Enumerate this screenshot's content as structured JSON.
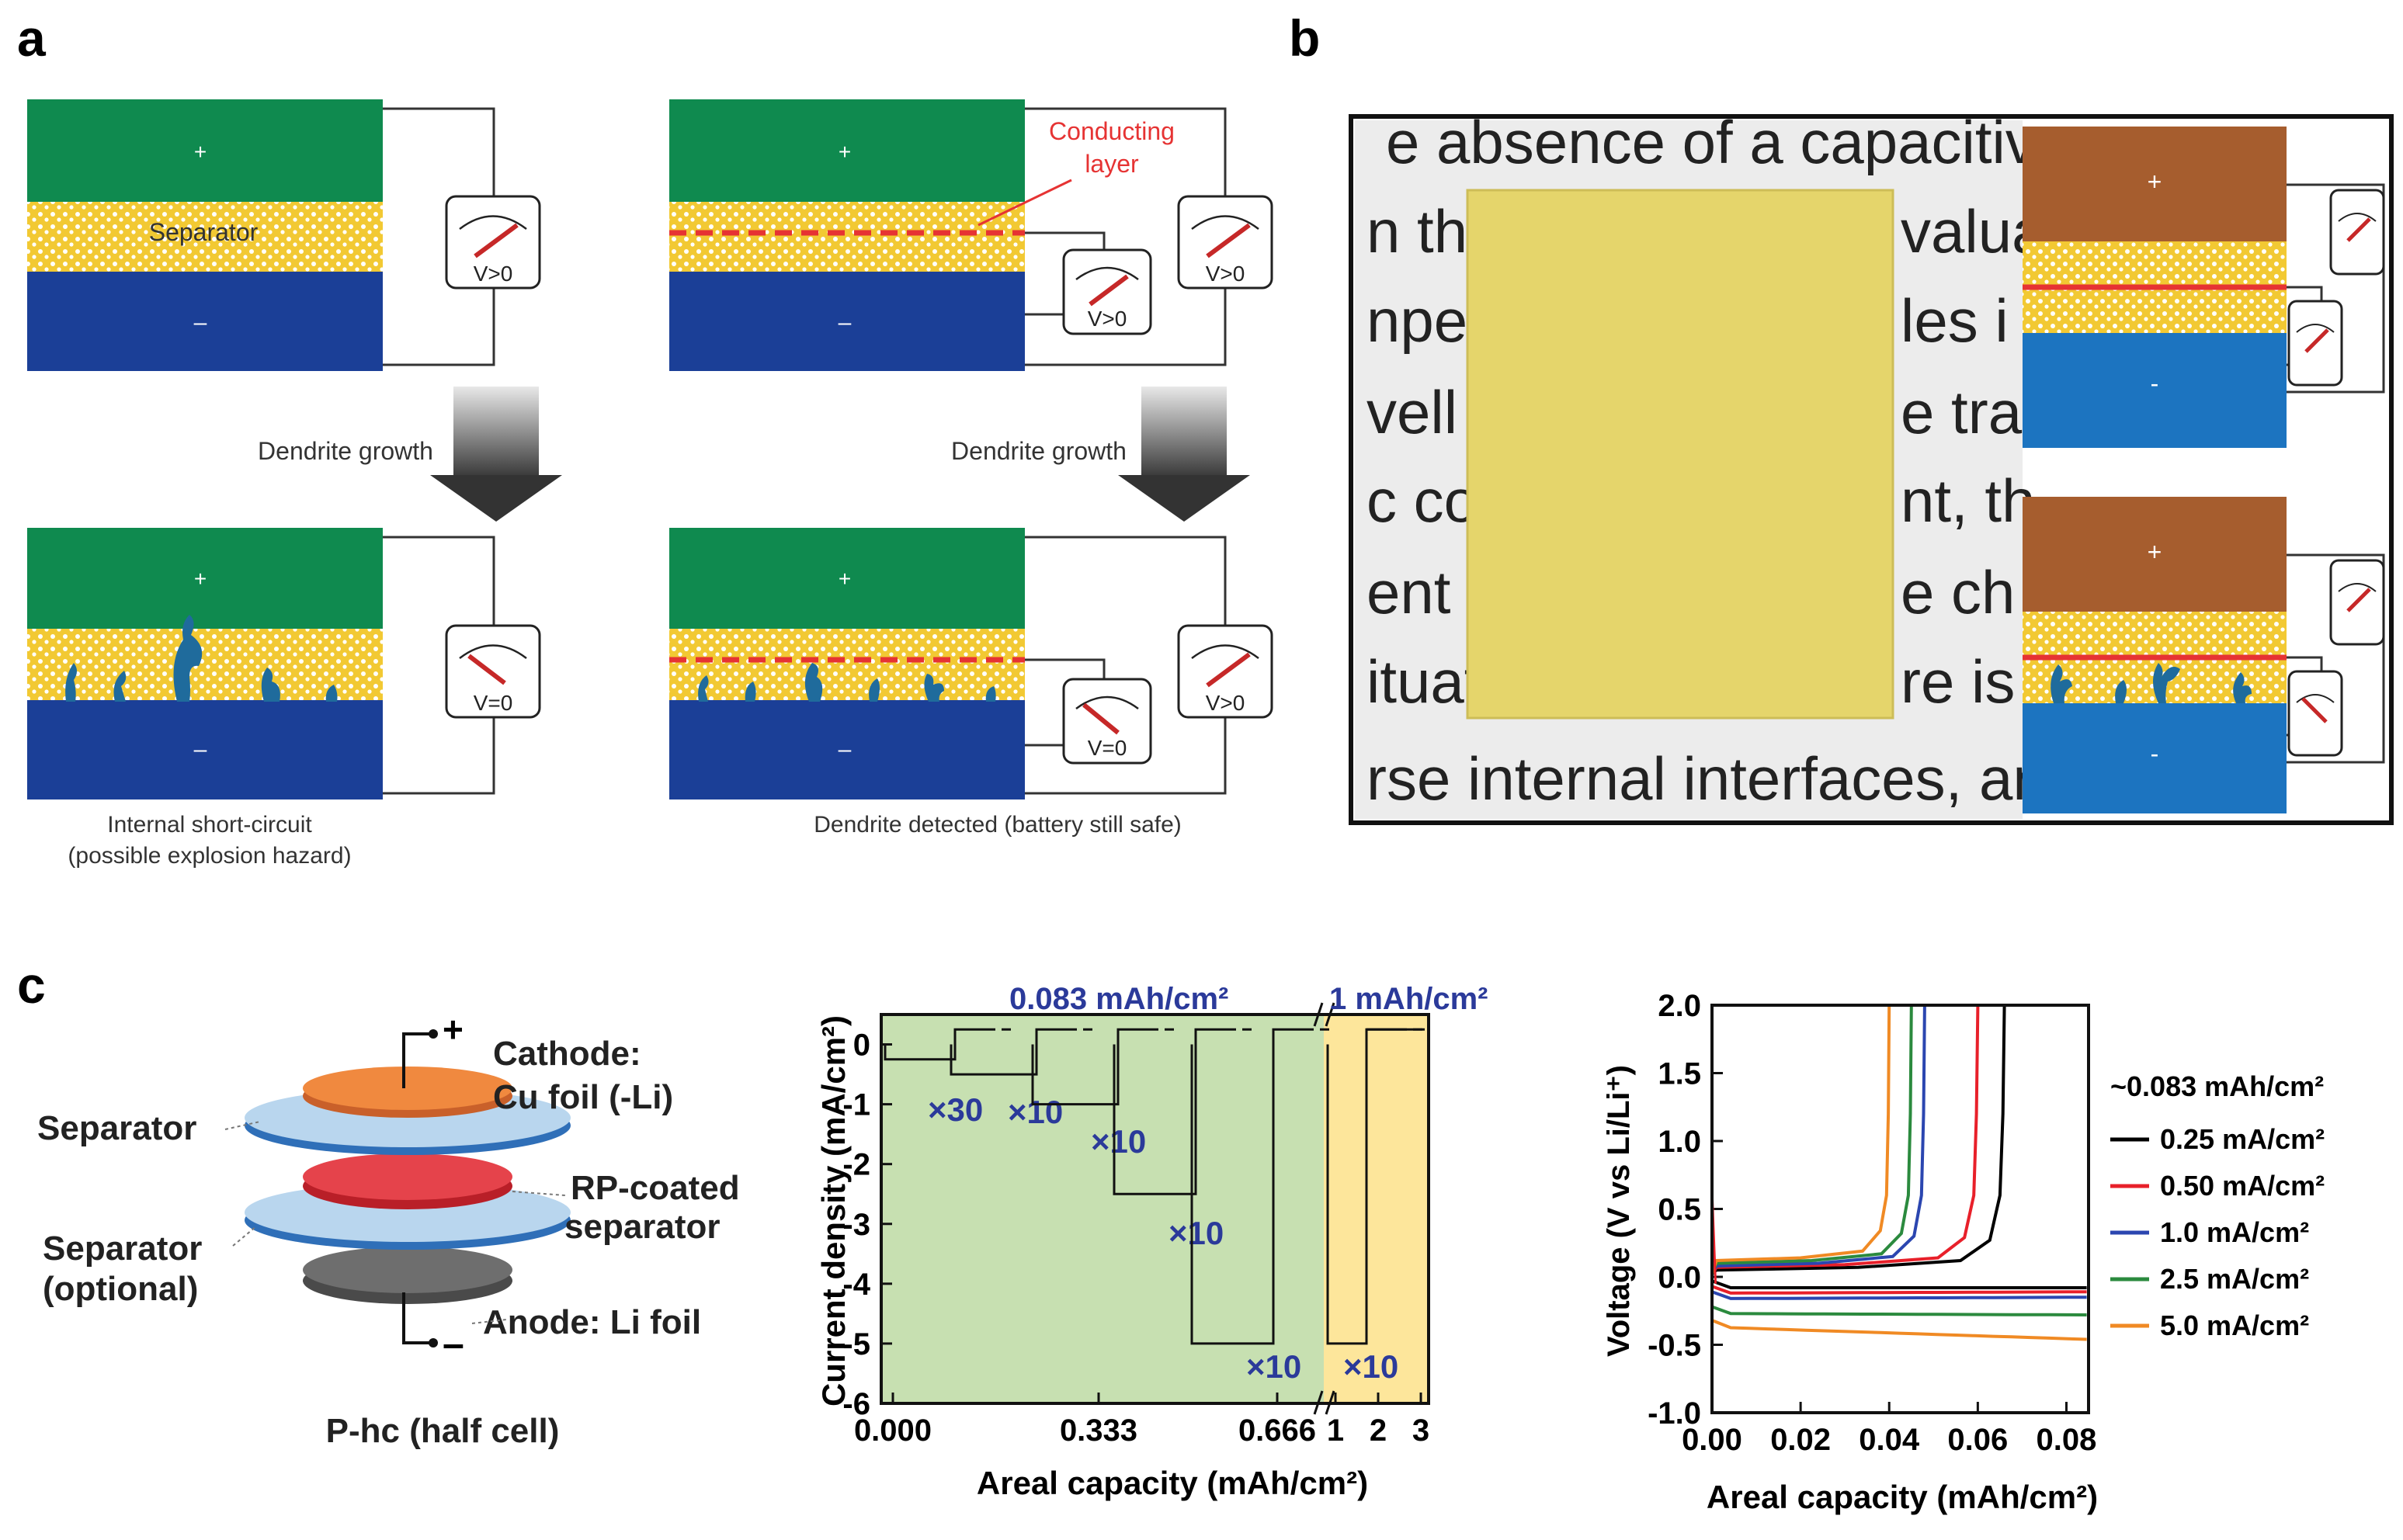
{
  "panel_labels": {
    "a": "a",
    "b": "b",
    "c": "c"
  },
  "panel_a": {
    "plus": "+",
    "minus": "–",
    "separator": "Separator",
    "conducting_layer": [
      "Conducting",
      "layer"
    ],
    "v_pos": "V>0",
    "v_zero": "V=0",
    "dendrite_growth": "Dendrite growth",
    "left_caption": [
      "Internal short-circuit",
      "(possible explosion hazard)"
    ],
    "right_caption": "Dendrite detected (battery still safe)"
  },
  "panel_b": {
    "text_lines": [
      "e absence of a capacitive",
      "n that",
      "valuati",
      "npedo",
      "les i",
      "vell a",
      "e tra",
      "c con",
      "nt, th",
      "ent f",
      "e ch",
      "ituat",
      "re is",
      "rse internal interfaces, and"
    ],
    "plus": "+",
    "minus": "-"
  },
  "cell_diagram": {
    "plus": "+",
    "minus": "–",
    "cathode": [
      "Cathode:",
      "Cu foil (-Li)"
    ],
    "separator": "Separator",
    "rp_separator": [
      "RP-coated",
      "separator"
    ],
    "separator_optional": [
      "Separator",
      "(optional)"
    ],
    "anode": "Anode: Li foil",
    "caption": "P-hc (half cell)"
  },
  "colors": {
    "green": "#0f8a4f",
    "blue": "#1b3f97",
    "yellow": "#f2c933",
    "red": "#e63333",
    "dendrite": "#1f6b9c",
    "brown": "#a65d2e",
    "lightblue": "#1c74c0",
    "label_blue": "#2b3a9a"
  },
  "chart_data": [
    {
      "type": "line",
      "title": "",
      "top_labels": [
        "0.083 mAh/cm²",
        "1 mAh/cm²"
      ],
      "xlabel": "Areal capacity (mAh/cm²)",
      "ylabel": "Current density (mA/cm²)",
      "xticks_left": [
        "0.000",
        "0.333",
        "0.666"
      ],
      "xticks_right": [
        "1",
        "2",
        "3"
      ],
      "yticks": [
        "0",
        "-1",
        "-2",
        "-3",
        "-4",
        "-5",
        "-6"
      ],
      "ylim": [
        -6,
        0.5
      ],
      "steps": [
        {
          "current": -0.25,
          "multiplier": "×30"
        },
        {
          "current": -0.5,
          "multiplier": "×10"
        },
        {
          "current": -1.0,
          "multiplier": "×10"
        },
        {
          "current": -2.5,
          "multiplier": "×10"
        },
        {
          "current": -5.0,
          "multiplier": "×10"
        },
        {
          "current": -5.0,
          "multiplier": "×10"
        }
      ],
      "charge_current": 0.25
    },
    {
      "type": "line",
      "title": "",
      "xlabel": "Areal capacity (mAh/cm²)",
      "ylabel": "Voltage (V vs Li/Li⁺)",
      "xlim": [
        0,
        0.085
      ],
      "ylim": [
        -1.0,
        2.0
      ],
      "xticks": [
        "0.00",
        "0.02",
        "0.04",
        "0.06",
        "0.08"
      ],
      "yticks": [
        "-1.0",
        "-0.5",
        "0.0",
        "0.5",
        "1.0",
        "1.5",
        "2.0"
      ],
      "legend_title": "~0.083 mAh/cm²",
      "series": [
        {
          "name": "0.25 mA/cm²",
          "color": "#000000",
          "discharge_v": [
            -0.08,
            -0.08
          ],
          "charge_end_x": 0.066,
          "plateau_v": 0.07
        },
        {
          "name": "0.50 mA/cm²",
          "color": "#e8202a",
          "discharge_v": [
            -0.12,
            -0.11
          ],
          "charge_end_x": 0.06,
          "plateau_v": 0.09
        },
        {
          "name": "1.0 mA/cm²",
          "color": "#2b46b0",
          "discharge_v": [
            -0.16,
            -0.15
          ],
          "charge_end_x": 0.048,
          "plateau_v": 0.1
        },
        {
          "name": "2.5 mA/cm²",
          "color": "#2b8a3e",
          "discharge_v": [
            -0.27,
            -0.28
          ],
          "charge_end_x": 0.045,
          "plateau_v": 0.12
        },
        {
          "name": "5.0 mA/cm²",
          "color": "#f08a24",
          "discharge_v": [
            -0.37,
            -0.46
          ],
          "charge_end_x": 0.04,
          "plateau_v": 0.14
        }
      ]
    }
  ]
}
